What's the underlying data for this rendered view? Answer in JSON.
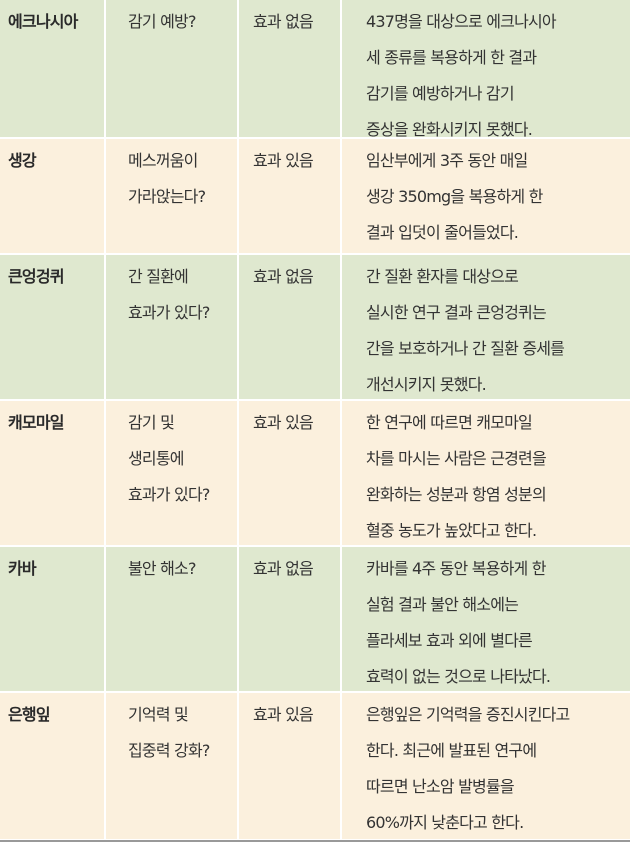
{
  "rows": [
    {
      "name": "에크나시아",
      "claim": [
        "감기 예방?"
      ],
      "result": "효과 없음",
      "desc": [
        "437명을 대상으로 에크나시아",
        "세 종류를 복용하게 한 결과",
        "감기를 예방하거나 감기",
        "증상을 완화시키지 못했다."
      ]
    },
    {
      "name": "생강",
      "claim": [
        "메스꺼움이",
        "가라앉는다?"
      ],
      "result": "효과 있음",
      "desc": [
        "임산부에게 3주 동안 매일",
        "생강 350mg을 복용하게 한",
        "결과 입덧이 줄어들었다."
      ]
    },
    {
      "name": "큰엉겅퀴",
      "claim": [
        "간 질환에",
        "효과가 있다?"
      ],
      "result": "효과 없음",
      "desc": [
        "간 질환 환자를 대상으로",
        "실시한 연구 결과 큰엉겅퀴는",
        "간을 보호하거나 간 질환 증세를",
        "개선시키지 못했다."
      ]
    },
    {
      "name": "캐모마일",
      "claim": [
        "감기 및",
        "생리통에",
        "효과가 있다?"
      ],
      "result": "효과 있음",
      "desc": [
        "한 연구에 따르면 캐모마일",
        "차를 마시는 사람은 근경련을",
        "완화하는 성분과 항염 성분의",
        "혈중 농도가 높았다고 한다."
      ]
    },
    {
      "name": "카바",
      "claim": [
        "불안 해소?"
      ],
      "result": "효과 없음",
      "desc": [
        "카바를 4주 동안 복용하게 한",
        "실험 결과 불안 해소에는",
        "플라세보 효과 외에 별다른",
        "효력이 없는 것으로 나타났다."
      ]
    },
    {
      "name": "은행잎",
      "claim": [
        "기억력 및",
        "집중력 강화?"
      ],
      "result": "효과 있음",
      "desc": [
        "은행잎은 기억력을 증진시킨다고",
        "한다. 최근에 발표된 연구에",
        "따르면 난소암 발병률을",
        "60%까지 낮춘다고 한다."
      ]
    }
  ],
  "colors": {
    "green_row": "#dfe8cf",
    "cream_row": "#fbf0dd"
  }
}
